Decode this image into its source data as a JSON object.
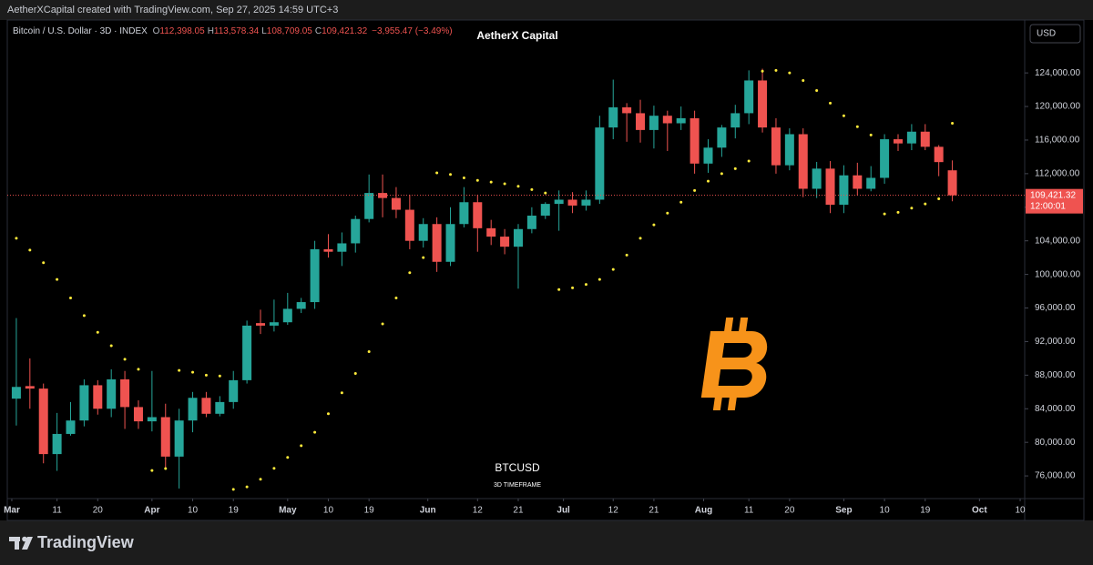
{
  "header": {
    "caption": "AetherXCapital created with TradingView.com, Sep 27, 2025 14:59 UTC+3"
  },
  "legend": {
    "symbol": "Bitcoin / U.S. Dollar · 3D · INDEX",
    "ohlc": [
      {
        "key": "O",
        "value": "112,398.05"
      },
      {
        "key": "H",
        "value": "113,578.34"
      },
      {
        "key": "L",
        "value": "108,709.05"
      },
      {
        "key": "C",
        "value": "109,421.32"
      }
    ],
    "change": "−3,955.47 (−3.49%)"
  },
  "footer": {
    "brand": "TradingView"
  },
  "chart_data": {
    "type": "candlestick",
    "title": "AetherX Capital",
    "currency": "USD",
    "watermark": {
      "symbol": "BTCUSD",
      "subtitle": "3D TIMEFRAME"
    },
    "candles": {
      "up_color": "#26a69a",
      "down_color": "#ef5350",
      "x": [
        "Mar 2",
        "Mar 5",
        "Mar 8",
        "Mar 11",
        "Mar 14",
        "Mar 17",
        "Mar 20",
        "Mar 23",
        "Mar 26",
        "Mar 29",
        "Apr 1",
        "Apr 4",
        "Apr 7",
        "Apr 10",
        "Apr 13",
        "Apr 16",
        "Apr 19",
        "Apr 22",
        "Apr 25",
        "Apr 28",
        "May 1",
        "May 4",
        "May 7",
        "May 10",
        "May 13",
        "May 16",
        "May 19",
        "May 22",
        "May 25",
        "May 28",
        "May 31",
        "Jun 3",
        "Jun 6",
        "Jun 9",
        "Jun 12",
        "Jun 15",
        "Jun 18",
        "Jun 21",
        "Jun 24",
        "Jun 27",
        "Jun 30",
        "Jul 3",
        "Jul 6",
        "Jul 9",
        "Jul 12",
        "Jul 15",
        "Jul 18",
        "Jul 21",
        "Jul 24",
        "Jul 27",
        "Jul 30",
        "Aug 2",
        "Aug 5",
        "Aug 8",
        "Aug 11",
        "Aug 14",
        "Aug 17",
        "Aug 20",
        "Aug 23",
        "Aug 26",
        "Aug 29",
        "Sep 1",
        "Sep 4",
        "Sep 7",
        "Sep 10",
        "Sep 13",
        "Sep 16",
        "Sep 19",
        "Sep 22",
        "Sep 25"
      ],
      "open": [
        85200,
        86700,
        86400,
        78600,
        81000,
        82600,
        86800,
        84000,
        87500,
        84200,
        82500,
        83000,
        78300,
        82600,
        85300,
        83400,
        84800,
        87400,
        94200,
        93900,
        94300,
        95900,
        96700,
        103000,
        102700,
        103700,
        106600,
        109700,
        109100,
        107700,
        104000,
        106000,
        101500,
        106000,
        108600,
        105500,
        104500,
        103300,
        105400,
        107000,
        108400,
        108900,
        108200,
        108900,
        117500,
        119900,
        119200,
        117200,
        118900,
        118000,
        118600,
        113200,
        115100,
        117500,
        119200,
        123100,
        117500,
        113000,
        116700,
        110200,
        112600,
        108300,
        111800,
        110200,
        111500,
        116100,
        115600,
        117000,
        115200,
        112398.05
      ],
      "high": [
        94800,
        90000,
        87000,
        83500,
        84800,
        87500,
        87400,
        88700,
        88500,
        85000,
        88500,
        84600,
        84000,
        86000,
        86000,
        85500,
        88500,
        94500,
        95800,
        97000,
        97800,
        97200,
        104000,
        104800,
        105000,
        107000,
        111900,
        111900,
        110400,
        109500,
        106700,
        106800,
        108000,
        110400,
        109500,
        106500,
        105400,
        106000,
        108000,
        108600,
        110000,
        109800,
        110000,
        118900,
        123200,
        120400,
        120800,
        120100,
        119500,
        120000,
        119500,
        116100,
        117800,
        120200,
        124300,
        124500,
        118600,
        117400,
        117400,
        113400,
        113500,
        113000,
        113300,
        112900,
        116700,
        116700,
        117900,
        117900,
        115400,
        113578.34
      ],
      "low": [
        82000,
        84000,
        77500,
        76600,
        80800,
        81900,
        83300,
        83000,
        81600,
        81600,
        81300,
        76900,
        74500,
        81200,
        83000,
        83100,
        84000,
        87000,
        92900,
        93200,
        94000,
        95400,
        95900,
        102000,
        101000,
        102600,
        106200,
        106800,
        106700,
        103000,
        103200,
        100300,
        101000,
        105600,
        102700,
        103500,
        102400,
        98300,
        104900,
        106600,
        105200,
        107300,
        107600,
        108400,
        116100,
        115800,
        115700,
        115000,
        114700,
        117200,
        112000,
        112100,
        114000,
        116200,
        117900,
        116900,
        112000,
        112400,
        109200,
        109100,
        107300,
        107300,
        109400,
        109900,
        110800,
        114700,
        114800,
        114800,
        111700,
        108709.05
      ],
      "close": [
        86600,
        86400,
        78600,
        81000,
        82600,
        86800,
        84000,
        87500,
        84200,
        82500,
        83000,
        78300,
        82600,
        85300,
        83400,
        84800,
        87400,
        93900,
        93900,
        94300,
        95900,
        96700,
        103000,
        102700,
        103700,
        106600,
        109700,
        109100,
        107700,
        104000,
        106000,
        101500,
        106000,
        108600,
        105500,
        104500,
        103300,
        105400,
        107000,
        108400,
        108900,
        108200,
        108900,
        117500,
        119900,
        119200,
        117200,
        118900,
        118000,
        118600,
        113200,
        115100,
        117500,
        119200,
        123100,
        117500,
        113000,
        116700,
        110200,
        112600,
        108300,
        111800,
        110200,
        111500,
        116100,
        115600,
        117000,
        115200,
        113376.79,
        109421.32
      ]
    },
    "sar": {
      "color": "#ffeb3b",
      "values": [
        104300,
        102900,
        101400,
        99400,
        97200,
        95100,
        93100,
        91500,
        89900,
        88700,
        76650,
        76870,
        88570,
        88350,
        88000,
        87900,
        74400,
        74700,
        75600,
        76900,
        78200,
        79600,
        81200,
        83400,
        85900,
        88200,
        90800,
        94100,
        97200,
        100200,
        102000,
        112100,
        111900,
        111500,
        111200,
        111000,
        110800,
        110500,
        110100,
        109700,
        98200,
        98400,
        98800,
        99400,
        100600,
        102300,
        104300,
        105900,
        107300,
        108600,
        110000,
        111100,
        112000,
        112600,
        113500,
        124200,
        124300,
        124000,
        123100,
        121900,
        120400,
        118900,
        117600,
        116600,
        107200,
        107400,
        107900,
        108400,
        109000,
        118000
      ]
    },
    "last_price": {
      "value": 109421.32,
      "label": "109,421.32",
      "countdown": "12:00:01"
    },
    "xlim": [
      "Feb 28",
      "Oct 11"
    ],
    "xticks": [
      {
        "value": "Mar 1",
        "label": "Mar"
      },
      {
        "value": "Mar 11",
        "label": "11"
      },
      {
        "value": "Mar 20",
        "label": "20"
      },
      {
        "value": "Apr 1",
        "label": "Apr"
      },
      {
        "value": "Apr 10",
        "label": "10"
      },
      {
        "value": "Apr 19",
        "label": "19"
      },
      {
        "value": "May 1",
        "label": "May"
      },
      {
        "value": "May 10",
        "label": "10"
      },
      {
        "value": "May 19",
        "label": "19"
      },
      {
        "value": "Jun 1",
        "label": "Jun"
      },
      {
        "value": "Jun 12",
        "label": "12"
      },
      {
        "value": "Jun 21",
        "label": "21"
      },
      {
        "value": "Jul 1",
        "label": "Jul"
      },
      {
        "value": "Jul 12",
        "label": "12"
      },
      {
        "value": "Jul 21",
        "label": "21"
      },
      {
        "value": "Aug 1",
        "label": "Aug"
      },
      {
        "value": "Aug 11",
        "label": "11"
      },
      {
        "value": "Aug 20",
        "label": "20"
      },
      {
        "value": "Sep 1",
        "label": "Sep"
      },
      {
        "value": "Sep 10",
        "label": "10"
      },
      {
        "value": "Sep 19",
        "label": "19"
      },
      {
        "value": "Oct 1",
        "label": "Oct"
      },
      {
        "value": "Oct 10",
        "label": "10"
      }
    ],
    "ylim": [
      73300,
      130300
    ],
    "yticks": [
      {
        "value": 76000,
        "label": "76,000.00"
      },
      {
        "value": 80000,
        "label": "80,000.00"
      },
      {
        "value": 84000,
        "label": "84,000.00"
      },
      {
        "value": 88000,
        "label": "88,000.00"
      },
      {
        "value": 92000,
        "label": "92,000.00"
      },
      {
        "value": 96000,
        "label": "96,000.00"
      },
      {
        "value": 100000,
        "label": "100,000.00"
      },
      {
        "value": 104000,
        "label": "104,000.00"
      },
      {
        "value": 108000,
        "label": "108,000.00"
      },
      {
        "value": 112000,
        "label": "112,000.00"
      },
      {
        "value": 116000,
        "label": "116,000.00"
      },
      {
        "value": 120000,
        "label": "120,000.00"
      },
      {
        "value": 124000,
        "label": "124,000.00"
      }
    ]
  }
}
